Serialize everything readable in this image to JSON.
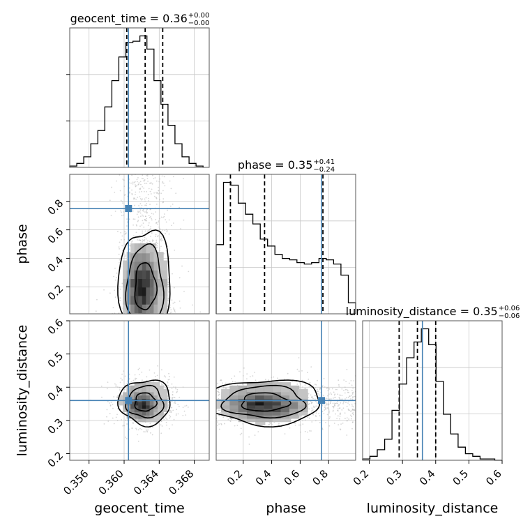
{
  "chart_data": {
    "type": "corner",
    "parameters": [
      "geocent_time",
      "phase",
      "luminosity_distance"
    ],
    "truths": [
      0.3605,
      0.75,
      0.36
    ],
    "truth_color": "#4682b4",
    "grid": true,
    "ranges": {
      "geocent_time": [
        0.3538,
        0.3697
      ],
      "phase": [
        0.01,
        0.99
      ],
      "luminosity_distance": [
        0.18,
        0.6
      ]
    },
    "ticks": {
      "geocent_time": [
        "0.356",
        "0.360",
        "0.364",
        "0.368"
      ],
      "phase_x": [
        "0.2",
        "0.4",
        "0.6",
        "0.8"
      ],
      "phase_y": [
        "0.2",
        "0.4",
        "0.6",
        "0.8"
      ],
      "luminosity_distance_x": [
        "0.2",
        "0.3",
        "0.4",
        "0.5",
        "0.6"
      ],
      "luminosity_distance_y": [
        "0.2",
        "0.3",
        "0.4",
        "0.5",
        "0.6"
      ]
    },
    "titles": [
      {
        "param": "geocent_time",
        "text": "geocent_time = 0.36",
        "plus": "+0.00",
        "minus": "−0.00"
      },
      {
        "param": "phase",
        "text": "phase = 0.35",
        "plus": "+0.41",
        "minus": "−0.24"
      },
      {
        "param": "luminosity_distance",
        "text": "luminosity_distance = 0.35",
        "plus": "+0.06",
        "minus": "−0.06"
      }
    ],
    "quantiles": {
      "geocent_time": [
        0.3603,
        0.3624,
        0.3644
      ],
      "phase": [
        0.11,
        0.35,
        0.76
      ],
      "luminosity_distance": [
        0.29,
        0.345,
        0.4
      ]
    },
    "histograms": {
      "geocent_time": {
        "edges": [
          0.3538,
          0.3546,
          0.3554,
          0.3562,
          0.357,
          0.3578,
          0.3586,
          0.3594,
          0.3602,
          0.361,
          0.3618,
          0.3626,
          0.3634,
          0.3642,
          0.365,
          0.3658,
          0.3666,
          0.3674,
          0.3682,
          0.369
        ],
        "counts": [
          1,
          3,
          8,
          18,
          28,
          46,
          66,
          84,
          95,
          96,
          100,
          90,
          66,
          48,
          32,
          18,
          8,
          3,
          1
        ]
      },
      "phase": {
        "edges": [
          0.01,
          0.0616,
          0.1132,
          0.1647,
          0.2163,
          0.2679,
          0.3195,
          0.3711,
          0.4226,
          0.4742,
          0.5258,
          0.5774,
          0.6289,
          0.6805,
          0.7321,
          0.7837,
          0.8353,
          0.8868,
          0.9384,
          0.99
        ],
        "counts": [
          50,
          95,
          93,
          80,
          72,
          65,
          54,
          49,
          43,
          40,
          39,
          37,
          36,
          37,
          40,
          39,
          36,
          28,
          8
        ]
      },
      "luminosity_distance": {
        "edges": [
          0.18,
          0.2021,
          0.2242,
          0.2463,
          0.2684,
          0.2905,
          0.3126,
          0.3347,
          0.3568,
          0.3789,
          0.4011,
          0.4232,
          0.4453,
          0.4674,
          0.4895,
          0.5116,
          0.5337,
          0.5558,
          0.5779,
          0.6
        ],
        "counts": [
          1,
          3,
          8,
          16,
          38,
          58,
          78,
          90,
          100,
          88,
          60,
          35,
          20,
          10,
          5,
          3,
          1,
          1,
          0
        ]
      }
    },
    "density_2d": [
      {
        "x": "geocent_time",
        "y": "phase",
        "center": [
          0.3624,
          0.2
        ],
        "spread": [
          0.0022,
          0.3
        ],
        "contour_levels": [
          0.39,
          0.86,
          0.99
        ]
      },
      {
        "x": "geocent_time",
        "y": "luminosity_distance",
        "center": [
          0.3624,
          0.355
        ],
        "spread": [
          0.0022,
          0.05
        ],
        "contour_levels": [
          0.39,
          0.86,
          0.99
        ]
      },
      {
        "x": "phase",
        "y": "luminosity_distance",
        "center": [
          0.35,
          0.355
        ],
        "spread": [
          0.3,
          0.05
        ],
        "contour_levels": [
          0.39,
          0.86,
          0.99
        ]
      }
    ]
  }
}
